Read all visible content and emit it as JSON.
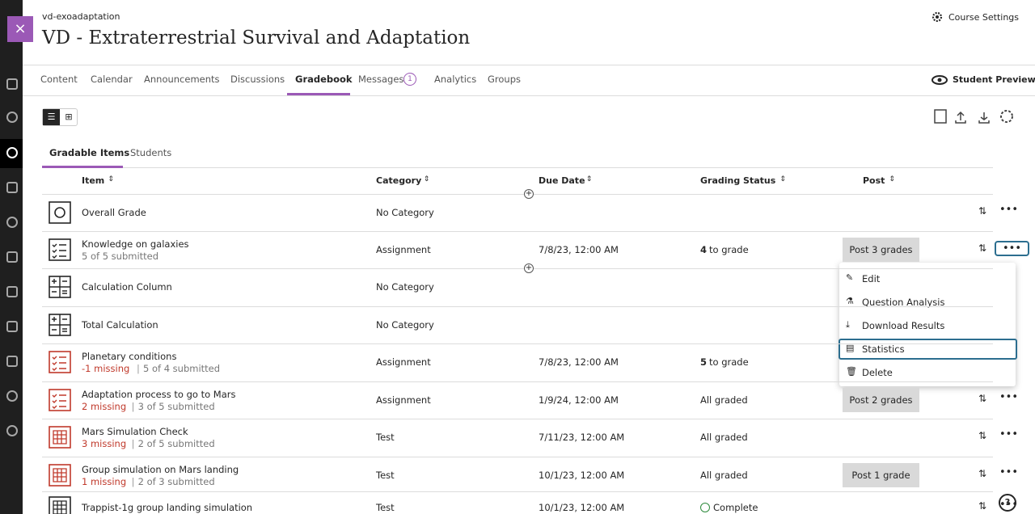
{
  "header": {
    "course_id": "vd-exoadaptation",
    "title": "VD - Extraterrestrial Survival and Adaptation",
    "settings": "Course Settings"
  },
  "nav": {
    "tabs": [
      "Content",
      "Calendar",
      "Announcements",
      "Discussions",
      "Gradebook",
      "Messages",
      "Analytics",
      "Groups"
    ],
    "messages_badge": 1,
    "student_preview": "Student Preview"
  },
  "subtabs": [
    "Gradable Items",
    "Students"
  ],
  "table": {
    "columns": [
      "Item",
      "Category",
      "Due Date",
      "Grading Status",
      "Post"
    ],
    "rows": [
      {
        "item": "Overall Grade",
        "category": "No Category"
      },
      {
        "item": "Knowledge on galaxies",
        "submitted": "5 of 5 submitted",
        "category": "Assignment",
        "due": "7/8/23, 12:00 AM",
        "status_count": 4,
        "status_text": "to grade",
        "post": "Post 3 grades"
      },
      {
        "item": "Calculation Column",
        "category": "No Category"
      },
      {
        "item": "Total Calculation",
        "category": "No Category"
      },
      {
        "item": "Planetary conditions",
        "missing": "-1 missing",
        "submitted": "5 of 4 submitted",
        "category": "Assignment",
        "due": "7/8/23, 12:00 AM",
        "status_count": 5,
        "status_text": "to grade"
      },
      {
        "item": "Adaptation process to go to Mars",
        "missing": "2 missing",
        "submitted": "3 of 5 submitted",
        "category": "Assignment",
        "due": "1/9/24, 12:00 AM",
        "status_text": "All graded",
        "post": "Post 2 grades"
      },
      {
        "item": "Mars Simulation Check",
        "missing": "3 missing",
        "submitted": "2 of 5 submitted",
        "category": "Test",
        "due": "7/11/23, 12:00 AM",
        "status_text": "All graded"
      },
      {
        "item": "Group simulation on Mars landing",
        "missing": "1 missing",
        "submitted": "2 of 3 submitted",
        "category": "Test",
        "due": "10/1/23, 12:00 AM",
        "status_text": "All graded",
        "post": "Post 1 grade"
      },
      {
        "item": "Trappist-1g group landing simulation",
        "category": "Test",
        "due": "10/1/23, 12:00 AM",
        "status_text": "Complete"
      }
    ]
  },
  "menu": {
    "items": [
      "Edit",
      "Question Analysis",
      "Download Results",
      "Statistics",
      "Delete"
    ]
  }
}
